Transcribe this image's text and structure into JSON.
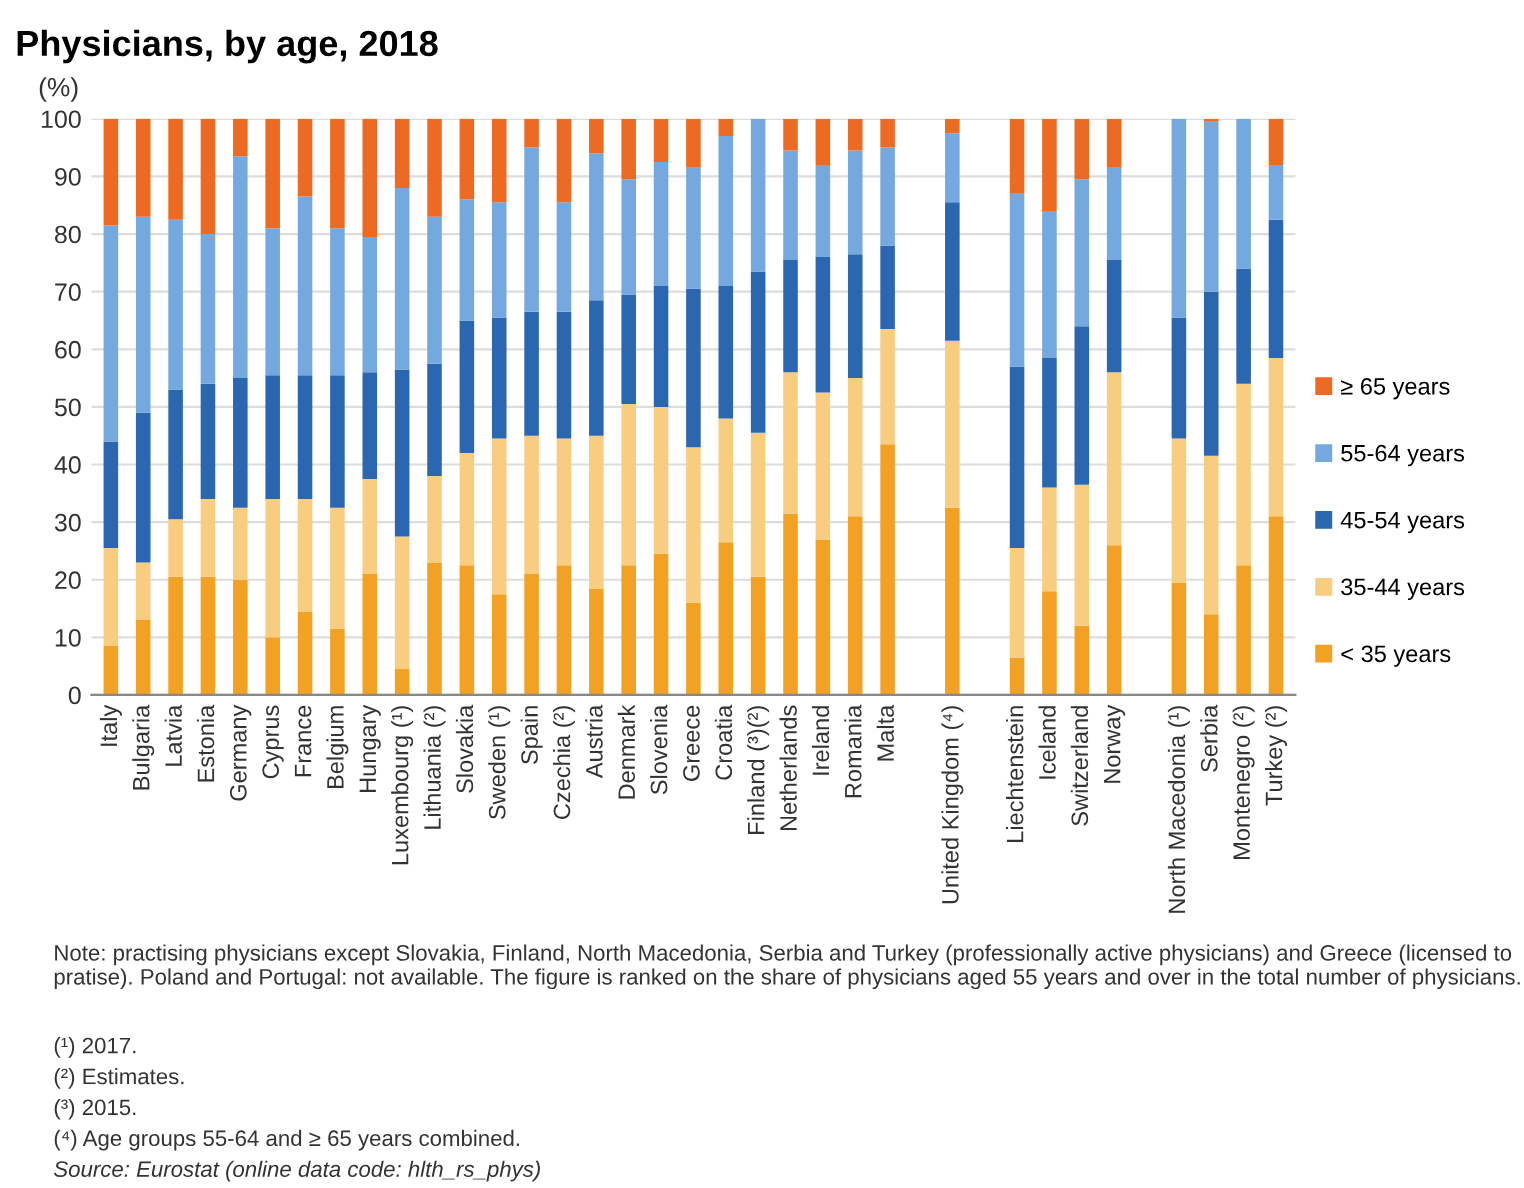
{
  "chart_data": {
    "type": "bar",
    "stacked": true,
    "title": "Physicians, by age, 2018",
    "ylabel": "(%)",
    "categories": [
      "Italy",
      "Bulgaria",
      "Latvia",
      "Estonia",
      "Germany",
      "Cyprus",
      "France",
      "Belgium",
      "Hungary",
      "Luxembourg (¹)",
      "Lithuania (²)",
      "Slovakia",
      "Sweden (¹)",
      "Spain",
      "Czechia (²)",
      "Austria",
      "Denmark",
      "Slovenia",
      "Greece",
      "Croatia",
      "Finland (³)(²)",
      "Netherlands",
      "Ireland",
      "Romania",
      "Malta",
      null,
      "United Kingdom (⁴)",
      null,
      "Liechtenstein",
      "Iceland",
      "Switzerland",
      "Norway",
      null,
      "North Macedonia (¹)",
      "Serbia",
      "Montenegro (²)",
      "Turkey (²)"
    ],
    "series": [
      {
        "name": "< 35 years",
        "color": "#f2a122",
        "values": [
          8.5,
          13,
          20.5,
          20.5,
          20,
          10,
          14.5,
          11.5,
          21,
          4.5,
          23,
          22.5,
          17.5,
          21,
          22.5,
          18.5,
          22.5,
          24.5,
          16,
          26.5,
          20.5,
          31.5,
          27,
          31,
          43.5,
          null,
          32.5,
          null,
          6.5,
          18,
          12,
          26,
          null,
          19.5,
          14,
          22.5,
          31
        ]
      },
      {
        "name": "35-44 years",
        "color": "#f9cd80",
        "values": [
          17,
          10,
          10,
          13.5,
          12.5,
          24,
          19.5,
          21,
          16.5,
          23,
          15,
          19.5,
          27,
          24,
          22,
          26.5,
          28,
          25.5,
          27,
          21.5,
          25,
          24.5,
          25.5,
          24,
          20,
          null,
          29,
          null,
          19,
          18,
          24.5,
          30,
          null,
          25,
          27.5,
          31.5,
          27.5
        ]
      },
      {
        "name": "45-54 years",
        "color": "#2b66b0",
        "values": [
          18.5,
          26,
          22.5,
          20,
          22.5,
          21.5,
          21.5,
          23,
          18.5,
          29,
          19.5,
          23,
          21,
          21.5,
          22,
          23.5,
          19,
          21,
          27.5,
          23,
          28,
          19.5,
          23.5,
          21.5,
          14.5,
          null,
          24,
          null,
          31.5,
          22.5,
          27.5,
          19.5,
          null,
          21,
          28.5,
          20,
          24
        ]
      },
      {
        "name": "55-64 years",
        "color": "#74a9e0",
        "values": [
          37.5,
          34,
          29.5,
          26,
          38.5,
          25.5,
          31,
          25.5,
          23.5,
          31.5,
          25.5,
          21,
          20,
          28.5,
          19,
          25.5,
          20,
          21.5,
          21,
          26,
          26.5,
          19,
          16,
          18,
          17,
          null,
          12,
          null,
          30,
          25.5,
          25.5,
          16,
          null,
          34.5,
          29.5,
          26,
          9.5
        ]
      },
      {
        "name": "≥ 65 years",
        "color": "#ec6a22",
        "values": [
          18.5,
          17,
          17.5,
          20,
          6.5,
          19,
          13.5,
          19,
          20.5,
          12,
          17,
          14,
          14.5,
          5,
          14.5,
          6,
          10.5,
          7.5,
          8.5,
          3,
          0,
          5.5,
          8,
          5.5,
          5,
          null,
          2.5,
          null,
          13,
          16,
          10.5,
          8.5,
          null,
          0,
          0.5,
          0,
          8
        ]
      }
    ],
    "ylim": [
      0,
      100
    ],
    "yticks": [
      0,
      10,
      20,
      30,
      40,
      50,
      60,
      70,
      80,
      90,
      100
    ],
    "grid": "y",
    "legend": "right",
    "annotations": [
      "Note: practising physicians except Slovakia, Finland, North Macedonia, Serbia and Turkey (professionally active physicians) and Greece (licensed to pratise). Poland and Portugal: not available. The figure is ranked on the share of physicians aged 55 years and over in the total number of physicians.",
      "(¹) 2017.",
      "(²) Estimates.",
      "(³) 2015.",
      "(⁴) Age groups 55-64 and ≥ 65 years combined.",
      "Source: Eurostat (online data code: hlth_rs_phys)"
    ]
  }
}
